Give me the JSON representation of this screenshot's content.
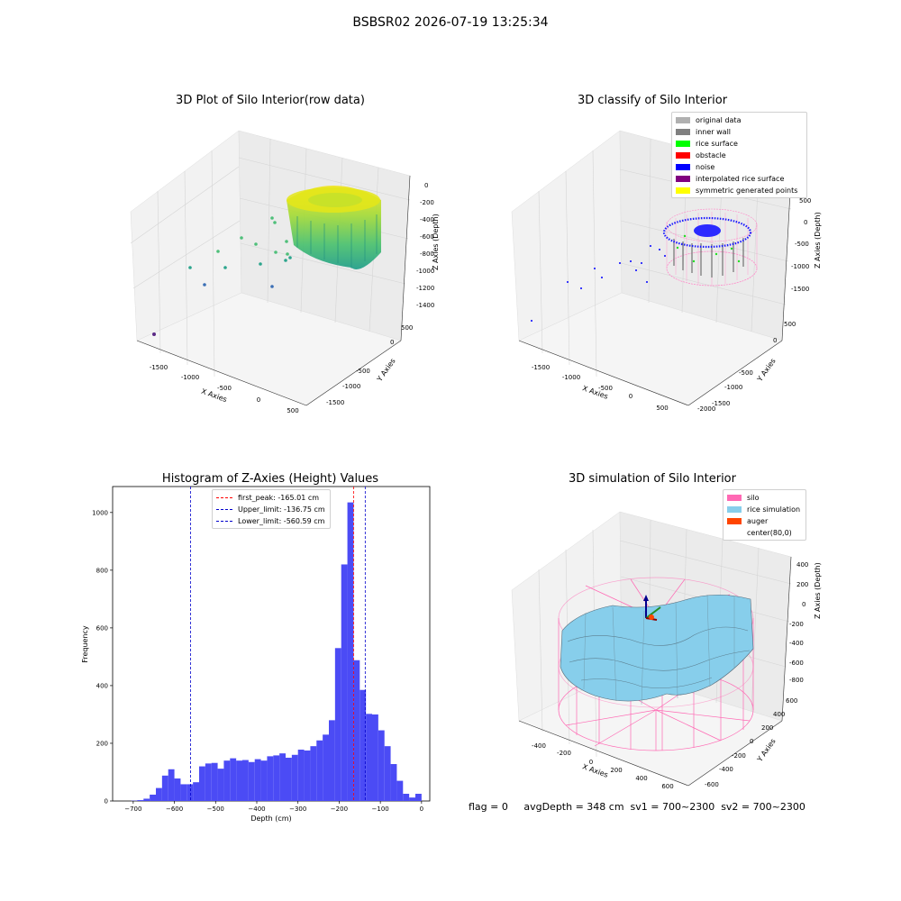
{
  "figure_title": "BSBSR02 2026-07-19 13:25:34",
  "panels": {
    "raw": {
      "title": "3D Plot of Silo Interior(row data)",
      "x_label": "X Axies",
      "y_label": "Y Axies",
      "z_label": "Z Axies (Depth)",
      "x_ticks": [
        "-1500",
        "-1000",
        "-500",
        "0",
        "500"
      ],
      "y_ticks": [
        "500",
        "0",
        "-500",
        "-1000",
        "-1500",
        "-2000"
      ],
      "z_ticks": [
        "0",
        "-200",
        "-400",
        "-600",
        "-800",
        "-1000",
        "-1200",
        "-1400"
      ]
    },
    "classify": {
      "title": "3D classify of Silo Interior",
      "x_label": "X Axies",
      "y_label": "Y Axies",
      "z_label": "Z Axies (Depth)",
      "x_ticks": [
        "-1500",
        "-1000",
        "-500",
        "0",
        "500"
      ],
      "y_ticks": [
        "500",
        "0",
        "-500",
        "-1000",
        "-1500",
        "-2000"
      ],
      "z_ticks": [
        "500",
        "0",
        "-500",
        "-1000",
        "-1500"
      ],
      "legend": [
        {
          "label": "original data",
          "color": "#b0b0b0"
        },
        {
          "label": "inner wall",
          "color": "#808080"
        },
        {
          "label": "rice surface",
          "color": "#00ff00"
        },
        {
          "label": "obstacle",
          "color": "#ff0000"
        },
        {
          "label": "noise",
          "color": "#0000ff"
        },
        {
          "label": "interpolated rice surface",
          "color": "#800080"
        },
        {
          "label": "symmetric generated points",
          "color": "#ffff00"
        }
      ]
    },
    "simulation": {
      "title": "3D simulation of Silo Interior",
      "x_label": "X Axies",
      "y_label": "Y Axies",
      "z_label": "Z Axies (Depth)",
      "x_ticks": [
        "-400",
        "-200",
        "0",
        "200",
        "400",
        "600"
      ],
      "y_ticks": [
        "600",
        "400",
        "200",
        "0",
        "-200",
        "-400",
        "-600"
      ],
      "z_ticks": [
        "400",
        "200",
        "0",
        "-200",
        "-400",
        "-600",
        "-800"
      ],
      "legend": [
        {
          "label": "silo",
          "color": "#ff69b4"
        },
        {
          "label": "rice simulation",
          "color": "#87ceeb"
        },
        {
          "label": "auger",
          "color": "#ff4500"
        },
        {
          "label": "center(80,0)",
          "color": "#ffffff"
        }
      ]
    }
  },
  "footer": "flag = 0     avgDepth = 348 cm  sv1 = 700~2300  sv2 = 700~2300",
  "chart_data": [
    {
      "type": "bar",
      "title": "Histogram of Z-Axies (Height) Values",
      "xlabel": "Depth (cm)",
      "ylabel": "Frequency",
      "xlim": [
        -750,
        20
      ],
      "ylim": [
        0,
        1090
      ],
      "x_ticks": [
        -700,
        -600,
        -500,
        -400,
        -300,
        -200,
        -100,
        0
      ],
      "y_ticks": [
        0,
        200,
        400,
        600,
        800,
        1000
      ],
      "bar_color": "#4b4bf5",
      "bin_width": 15,
      "bin_starts": [
        -705,
        -690,
        -675,
        -660,
        -645,
        -630,
        -615,
        -600,
        -585,
        -570,
        -555,
        -540,
        -525,
        -510,
        -495,
        -480,
        -465,
        -450,
        -435,
        -420,
        -405,
        -390,
        -375,
        -360,
        -345,
        -330,
        -315,
        -300,
        -285,
        -270,
        -255,
        -240,
        -225,
        -210,
        -195,
        -180,
        -165,
        -150,
        -135,
        -120,
        -105,
        -90,
        -75,
        -60,
        -45,
        -30,
        -15
      ],
      "values": [
        1,
        3,
        8,
        22,
        45,
        88,
        110,
        78,
        58,
        58,
        65,
        120,
        130,
        132,
        112,
        140,
        148,
        140,
        142,
        135,
        145,
        140,
        155,
        158,
        165,
        150,
        160,
        178,
        175,
        190,
        210,
        230,
        280,
        530,
        820,
        1035,
        488,
        385,
        302,
        300,
        245,
        190,
        128,
        70,
        25,
        12,
        25
      ],
      "lines": [
        {
          "label": "first_peak: -165.01 cm",
          "x": -165.01,
          "color": "#ff0000"
        },
        {
          "label": "Upper_limit: -136.75 cm",
          "x": -136.75,
          "color": "#0000cc"
        },
        {
          "label": "Lower_limit: -560.59 cm",
          "x": -560.59,
          "color": "#0000cc"
        }
      ]
    }
  ]
}
